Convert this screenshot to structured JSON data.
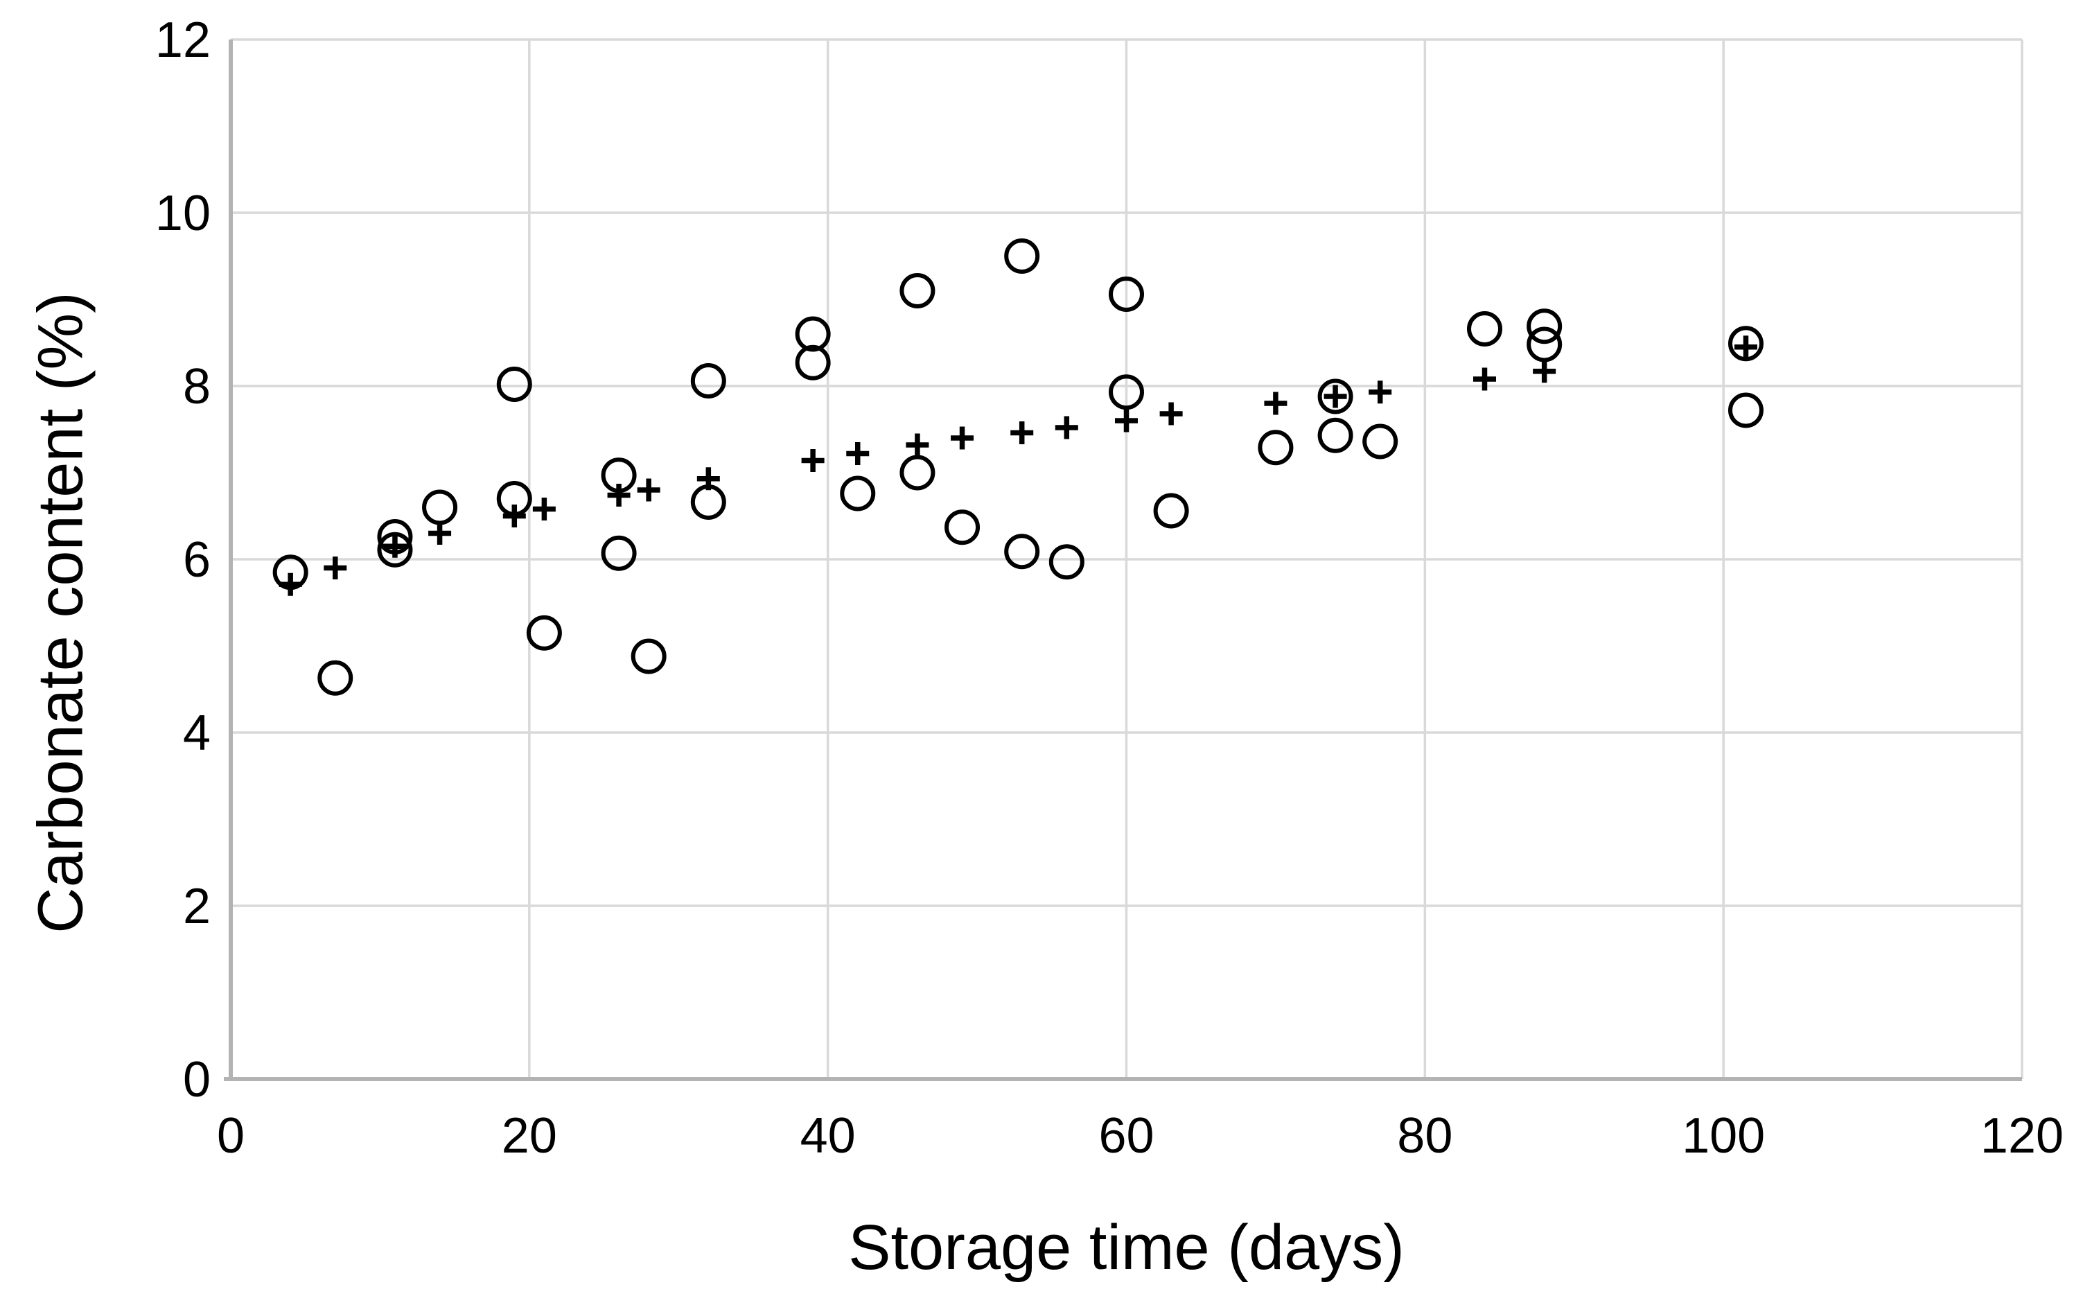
{
  "chart_data": {
    "type": "scatter",
    "title": "",
    "xlabel": "Storage time (days)",
    "ylabel": "Carbonate content (%)",
    "xlim": [
      0,
      120
    ],
    "ylim": [
      0,
      12
    ],
    "xticks": [
      0,
      20,
      40,
      60,
      80,
      100,
      120
    ],
    "yticks": [
      0,
      2,
      4,
      6,
      8,
      10,
      12
    ],
    "grid": true,
    "legend_position": "none",
    "colors": {
      "marker": "#000000",
      "gridline": "#d9d9d9",
      "axis_line": "#b3b3b3",
      "tick_label": "#000000",
      "background": "#ffffff"
    },
    "series": [
      {
        "name": "circle-series",
        "marker": "circle",
        "points": [
          [
            4,
            5.85
          ],
          [
            7,
            4.63
          ],
          [
            11,
            6.26
          ],
          [
            11,
            6.11
          ],
          [
            14,
            6.6
          ],
          [
            19,
            8.02
          ],
          [
            19,
            6.7
          ],
          [
            21,
            5.15
          ],
          [
            26,
            6.97
          ],
          [
            26,
            6.07
          ],
          [
            28,
            4.88
          ],
          [
            32,
            8.06
          ],
          [
            32,
            6.66
          ],
          [
            39,
            8.6
          ],
          [
            39,
            8.27
          ],
          [
            42,
            6.76
          ],
          [
            46,
            9.1
          ],
          [
            46,
            7.0
          ],
          [
            49,
            6.37
          ],
          [
            53,
            9.5
          ],
          [
            53,
            6.09
          ],
          [
            56,
            5.97
          ],
          [
            60,
            9.06
          ],
          [
            60,
            7.93
          ],
          [
            63,
            6.56
          ],
          [
            70,
            7.29
          ],
          [
            74,
            7.88
          ],
          [
            74,
            7.43
          ],
          [
            77,
            7.36
          ],
          [
            84,
            8.66
          ],
          [
            88,
            8.69
          ],
          [
            88,
            8.48
          ],
          [
            101.5,
            8.49
          ],
          [
            101.5,
            7.72
          ]
        ]
      },
      {
        "name": "plus-series",
        "marker": "plus",
        "points": [
          [
            4,
            5.71
          ],
          [
            7,
            5.9
          ],
          [
            11,
            6.15
          ],
          [
            14,
            6.3
          ],
          [
            19,
            6.5
          ],
          [
            21,
            6.58
          ],
          [
            26,
            6.74
          ],
          [
            28,
            6.8
          ],
          [
            32,
            6.93
          ],
          [
            39,
            7.14
          ],
          [
            42,
            7.22
          ],
          [
            46,
            7.32
          ],
          [
            49,
            7.4
          ],
          [
            53,
            7.46
          ],
          [
            56,
            7.52
          ],
          [
            60,
            7.6
          ],
          [
            63,
            7.68
          ],
          [
            70,
            7.8
          ],
          [
            74,
            7.88
          ],
          [
            77,
            7.93
          ],
          [
            84,
            8.08
          ],
          [
            88,
            8.17
          ],
          [
            101.5,
            8.45
          ]
        ]
      }
    ]
  }
}
